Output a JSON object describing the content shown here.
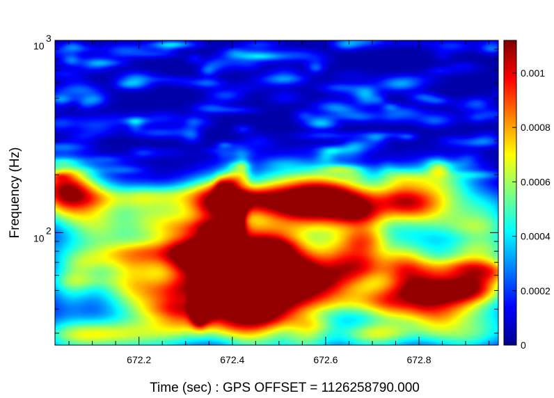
{
  "chart_data": {
    "type": "heatmap",
    "title": "",
    "xlabel": "Time (sec) : GPS OFFSET = 1126258790.000",
    "ylabel": "Frequency (Hz)",
    "x_range": [
      672.02,
      672.97
    ],
    "y_range": [
      26,
      1000
    ],
    "y_scale": "log",
    "x_ticks": [
      {
        "value": 672.2,
        "label": "672.2"
      },
      {
        "value": 672.4,
        "label": "672.4"
      },
      {
        "value": 672.6,
        "label": "672.6"
      },
      {
        "value": 672.8,
        "label": "672.8"
      }
    ],
    "y_ticks": [
      {
        "value": 100,
        "base": "10",
        "exp": "2"
      },
      {
        "value": 1000,
        "base": "10",
        "exp": "3"
      }
    ],
    "colorbar": {
      "range": [
        0,
        0.00112
      ],
      "ticks": [
        {
          "value": 0,
          "label": "0"
        },
        {
          "value": 0.0002,
          "label": "0.0002"
        },
        {
          "value": 0.0004,
          "label": "0.0004"
        },
        {
          "value": 0.0006,
          "label": "0.0006"
        },
        {
          "value": 0.0008,
          "label": "0.0008"
        },
        {
          "value": 0.001,
          "label": "0.001"
        }
      ],
      "colormap": "jet"
    },
    "background_level": 8e-05,
    "chirp": {
      "description_points": [
        {
          "t": 672.33,
          "f": 40,
          "value": 0.00105
        },
        {
          "t": 672.37,
          "f": 50,
          "value": 0.0011
        },
        {
          "t": 672.4,
          "f": 90,
          "value": 0.0011
        },
        {
          "t": 672.41,
          "f": 135,
          "value": 0.00095
        },
        {
          "t": 672.38,
          "f": 170,
          "value": 0.0005
        },
        {
          "t": 672.42,
          "f": 205,
          "value": 0.0004
        }
      ]
    },
    "grid": false,
    "legend": "colorbar-right"
  }
}
